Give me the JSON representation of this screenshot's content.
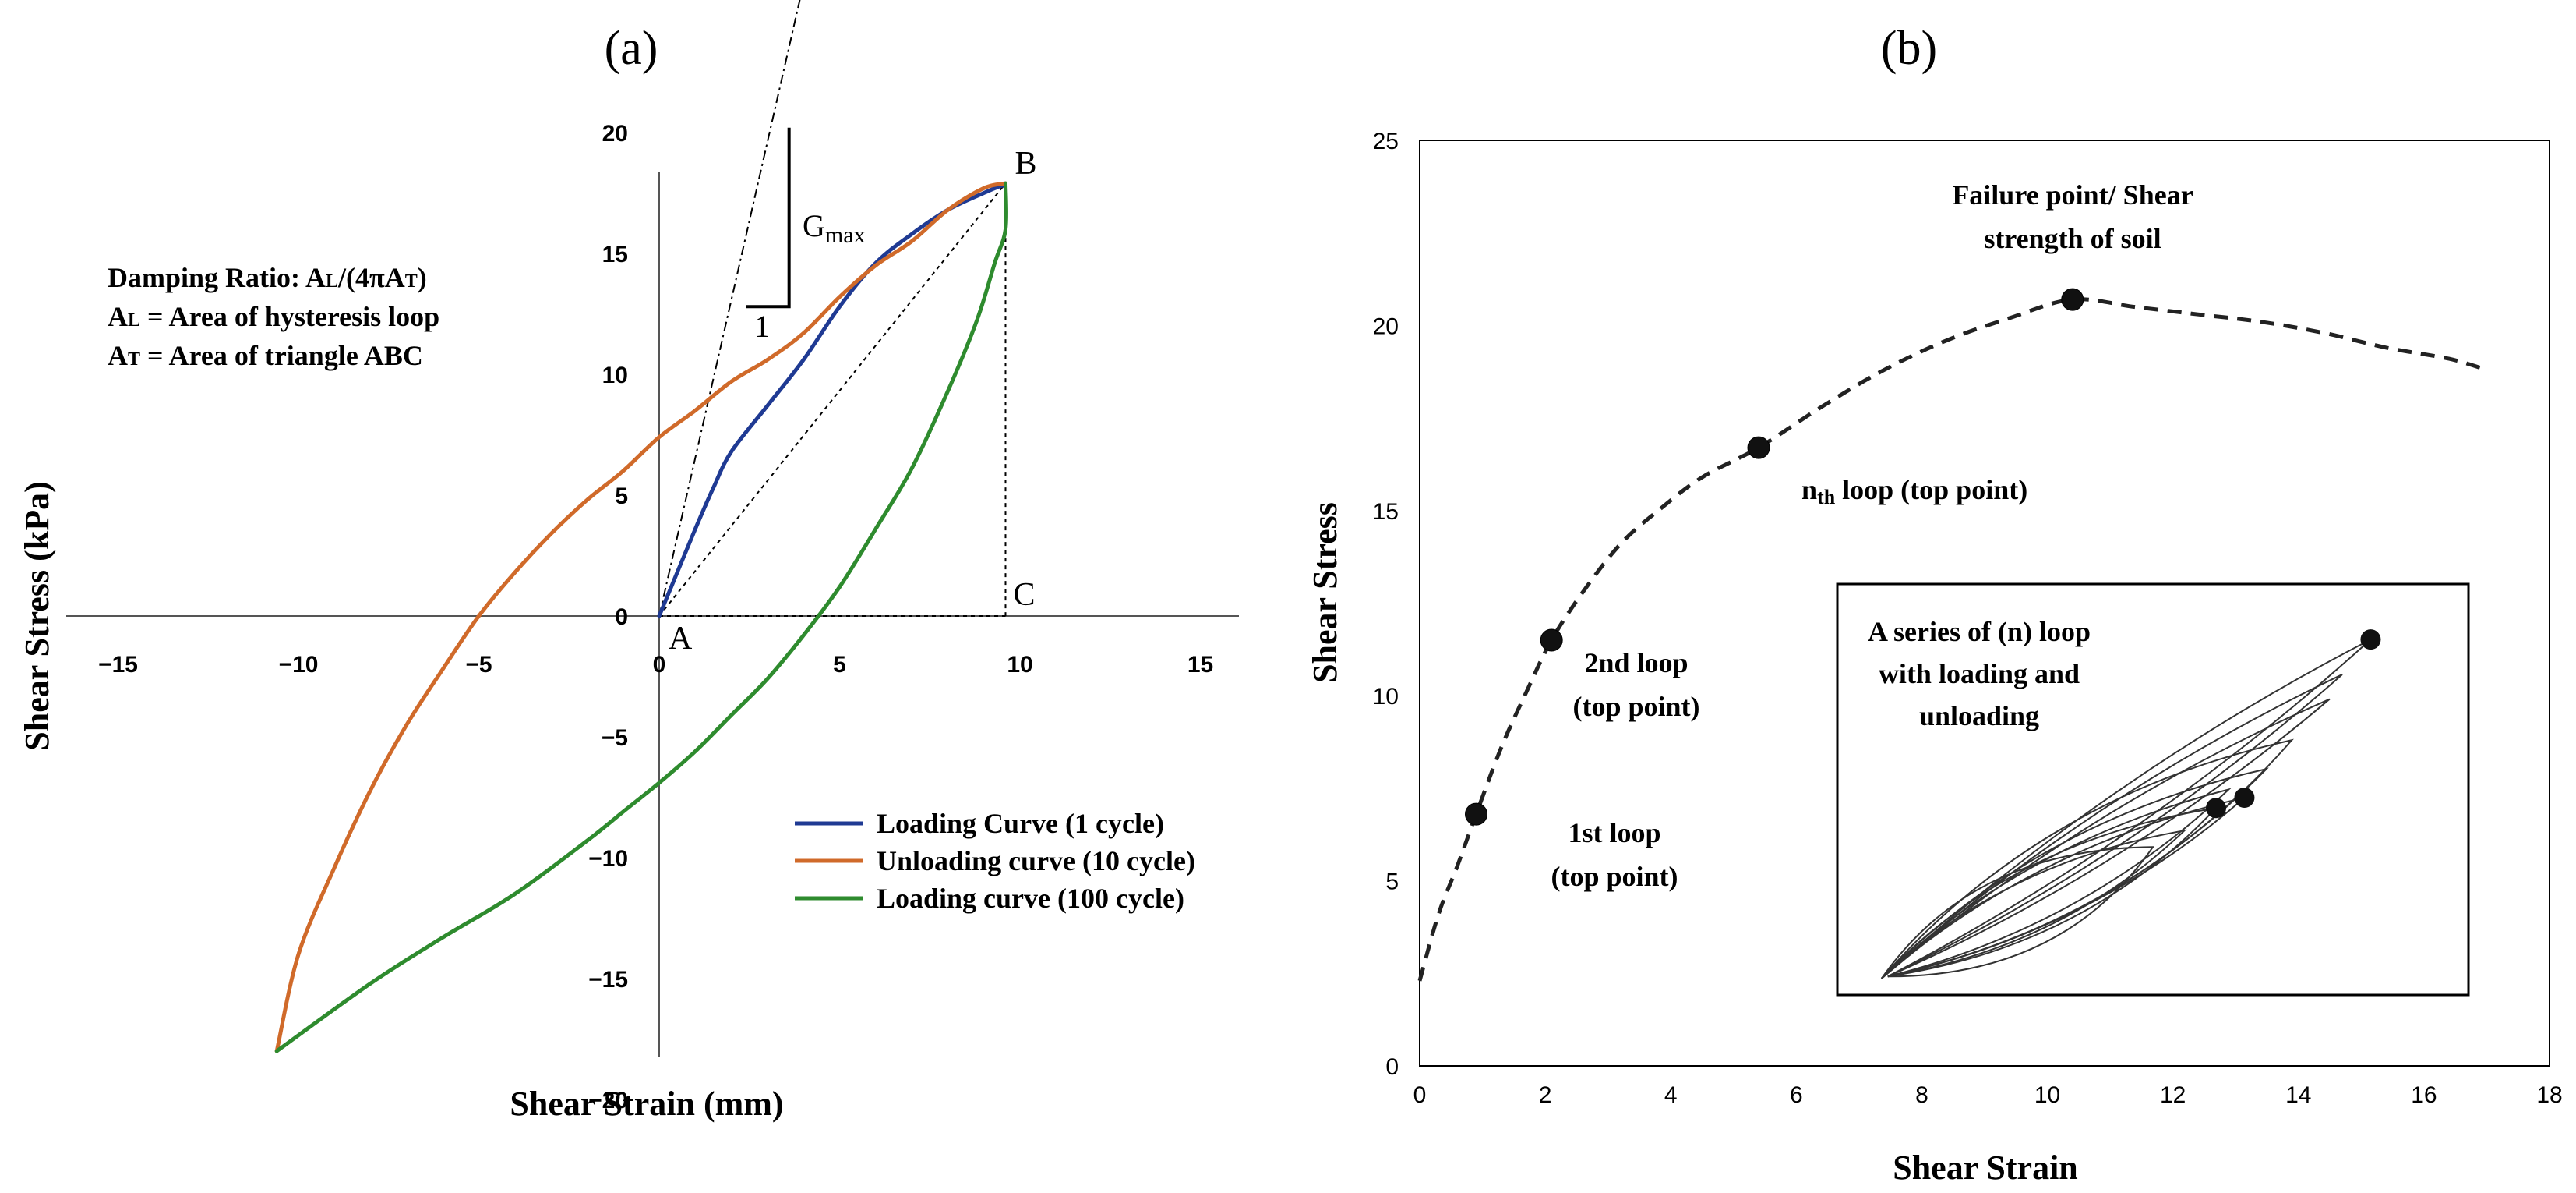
{
  "chart_data": [
    {
      "panel_label": "(a)",
      "type": "line",
      "xlabel": "Shear Strain (mm)",
      "ylabel": "Shear Stress (kPa)",
      "xlim": [
        -15,
        15
      ],
      "ylim": [
        -20,
        20
      ],
      "xticks": [
        -15,
        -10,
        -5,
        0,
        5,
        10,
        15
      ],
      "yticks": [
        -20,
        -15,
        -10,
        -5,
        0,
        5,
        10,
        15,
        20
      ],
      "series": [
        {
          "name": "Loading Curve (1 cycle)",
          "color": "#1F3A93",
          "x": [
            0,
            0.5,
            1,
            1.5,
            2,
            3,
            4,
            5,
            6,
            7,
            8,
            9,
            9.5,
            9.6
          ],
          "y": [
            0,
            1.8,
            3.6,
            5.3,
            6.8,
            8.7,
            10.6,
            12.8,
            14.6,
            15.8,
            16.8,
            17.5,
            17.8,
            17.7
          ]
        },
        {
          "name": "Unloading curve (10 cycle)",
          "color": "#D06A2A",
          "x": [
            9.6,
            9,
            8,
            7,
            6,
            5,
            4,
            3,
            2,
            1,
            0,
            -1,
            -2,
            -3,
            -4,
            -5,
            -6,
            -7,
            -8,
            -9,
            -10,
            -10.6
          ],
          "y": [
            17.9,
            17.7,
            16.8,
            15.5,
            14.5,
            13.2,
            11.7,
            10.6,
            9.7,
            8.5,
            7.4,
            6.0,
            4.8,
            3.4,
            1.8,
            0,
            -2.2,
            -4.5,
            -7.2,
            -10.4,
            -14.0,
            -18.0
          ]
        },
        {
          "name": "Loading curve (100 cycle)",
          "color": "#2E8B2E",
          "x": [
            -10.6,
            -8,
            -6,
            -4,
            -2,
            -1,
            0,
            1,
            2,
            3,
            4,
            5,
            6,
            7,
            8,
            8.8,
            9.3,
            9.6,
            9.6
          ],
          "y": [
            -18.0,
            -15.2,
            -13.3,
            -11.5,
            -9.3,
            -8.1,
            -6.9,
            -5.6,
            -4.1,
            -2.6,
            -0.8,
            1.2,
            3.6,
            6.1,
            9.3,
            12.2,
            14.6,
            16.0,
            17.9
          ]
        }
      ],
      "reference_lines": [
        {
          "name": "secant-AB",
          "x": [
            0,
            9.6
          ],
          "y": [
            0,
            17.9
          ],
          "style": "dotted"
        },
        {
          "name": "Gmax-tangent",
          "x": [
            0,
            3.9
          ],
          "y": [
            0,
            25.5
          ],
          "style": "dash-dot"
        },
        {
          "name": "triangle-BC",
          "x": [
            9.6,
            9.6
          ],
          "y": [
            17.9,
            0
          ],
          "style": "dotted"
        },
        {
          "name": "triangle-AC",
          "x": [
            0,
            9.6
          ],
          "y": [
            0,
            0
          ],
          "style": "dotted"
        }
      ],
      "slope_triangle": {
        "x_left": 2.4,
        "x_right": 3.6,
        "y_top": 20.2,
        "y_bottom": 12.8
      },
      "points": [
        {
          "label": "A",
          "x": 0,
          "y": 0
        },
        {
          "label": "B",
          "x": 9.6,
          "y": 17.9
        },
        {
          "label": "C",
          "x": 9.6,
          "y": 0
        }
      ],
      "annotations": {
        "gmax": "G",
        "gmax_sub": "max",
        "slope_one": "1",
        "damping_line1_pre": "Damping Ratio: A",
        "damping_line1_sub1": "L",
        "damping_line1_mid": "/(4πA",
        "damping_line1_sub2": "T",
        "damping_line1_post": ")",
        "area_loop_pre": "A",
        "area_loop_sub": "L",
        "area_loop_post": " = Area of hysteresis loop",
        "area_tri_pre": "A",
        "area_tri_sub": "T",
        "area_tri_post": " = Area of triangle ABC"
      },
      "legend_position": "lower-right"
    },
    {
      "panel_label": "(b)",
      "type": "line",
      "xlabel": "Shear Strain",
      "ylabel": "Shear Stress",
      "xlim": [
        0,
        18
      ],
      "ylim": [
        0,
        25
      ],
      "xticks": [
        0,
        2,
        4,
        6,
        8,
        10,
        12,
        14,
        16,
        18
      ],
      "yticks": [
        0,
        5,
        10,
        15,
        20,
        25
      ],
      "series": [
        {
          "name": "top points envelope",
          "style": "dashed",
          "x": [
            0,
            0.3,
            0.6,
            0.9,
            1.3,
            1.7,
            2.1,
            2.6,
            3.2,
            3.8,
            4.5,
            5.4,
            6.4,
            7.4,
            8.4,
            9.4,
            10.4,
            11.4,
            12.4,
            13.4,
            14.4,
            15.4,
            16.4,
            17.0
          ],
          "y": [
            2.3,
            4.1,
            5.4,
            6.8,
            8.6,
            10.1,
            11.5,
            12.8,
            14.1,
            15.0,
            15.9,
            16.7,
            17.8,
            18.8,
            19.6,
            20.2,
            20.7,
            20.5,
            20.3,
            20.1,
            19.8,
            19.4,
            19.1,
            18.8
          ]
        }
      ],
      "markers": [
        {
          "x": 0.9,
          "y": 6.8
        },
        {
          "x": 2.1,
          "y": 11.5
        },
        {
          "x": 5.4,
          "y": 16.7
        },
        {
          "x": 10.4,
          "y": 20.7
        }
      ],
      "annotations": [
        {
          "id": "failure",
          "lines": [
            "Failure point/ Shear",
            "strength of soil"
          ]
        },
        {
          "id": "nth",
          "pre": "n",
          "sub": "th",
          "post": " loop (top point)"
        },
        {
          "id": "second",
          "lines": [
            "2nd loop",
            "(top point)"
          ]
        },
        {
          "id": "first",
          "lines": [
            "1st loop",
            "(top point)"
          ]
        }
      ],
      "inset": {
        "title_lines": [
          "A series of (n) loop",
          "with loading and",
          "unloading"
        ],
        "markers": [
          {
            "u": 0.845,
            "v": 0.865
          },
          {
            "u": 0.645,
            "v": 0.48
          },
          {
            "u": 0.6,
            "v": 0.455
          }
        ]
      }
    }
  ]
}
